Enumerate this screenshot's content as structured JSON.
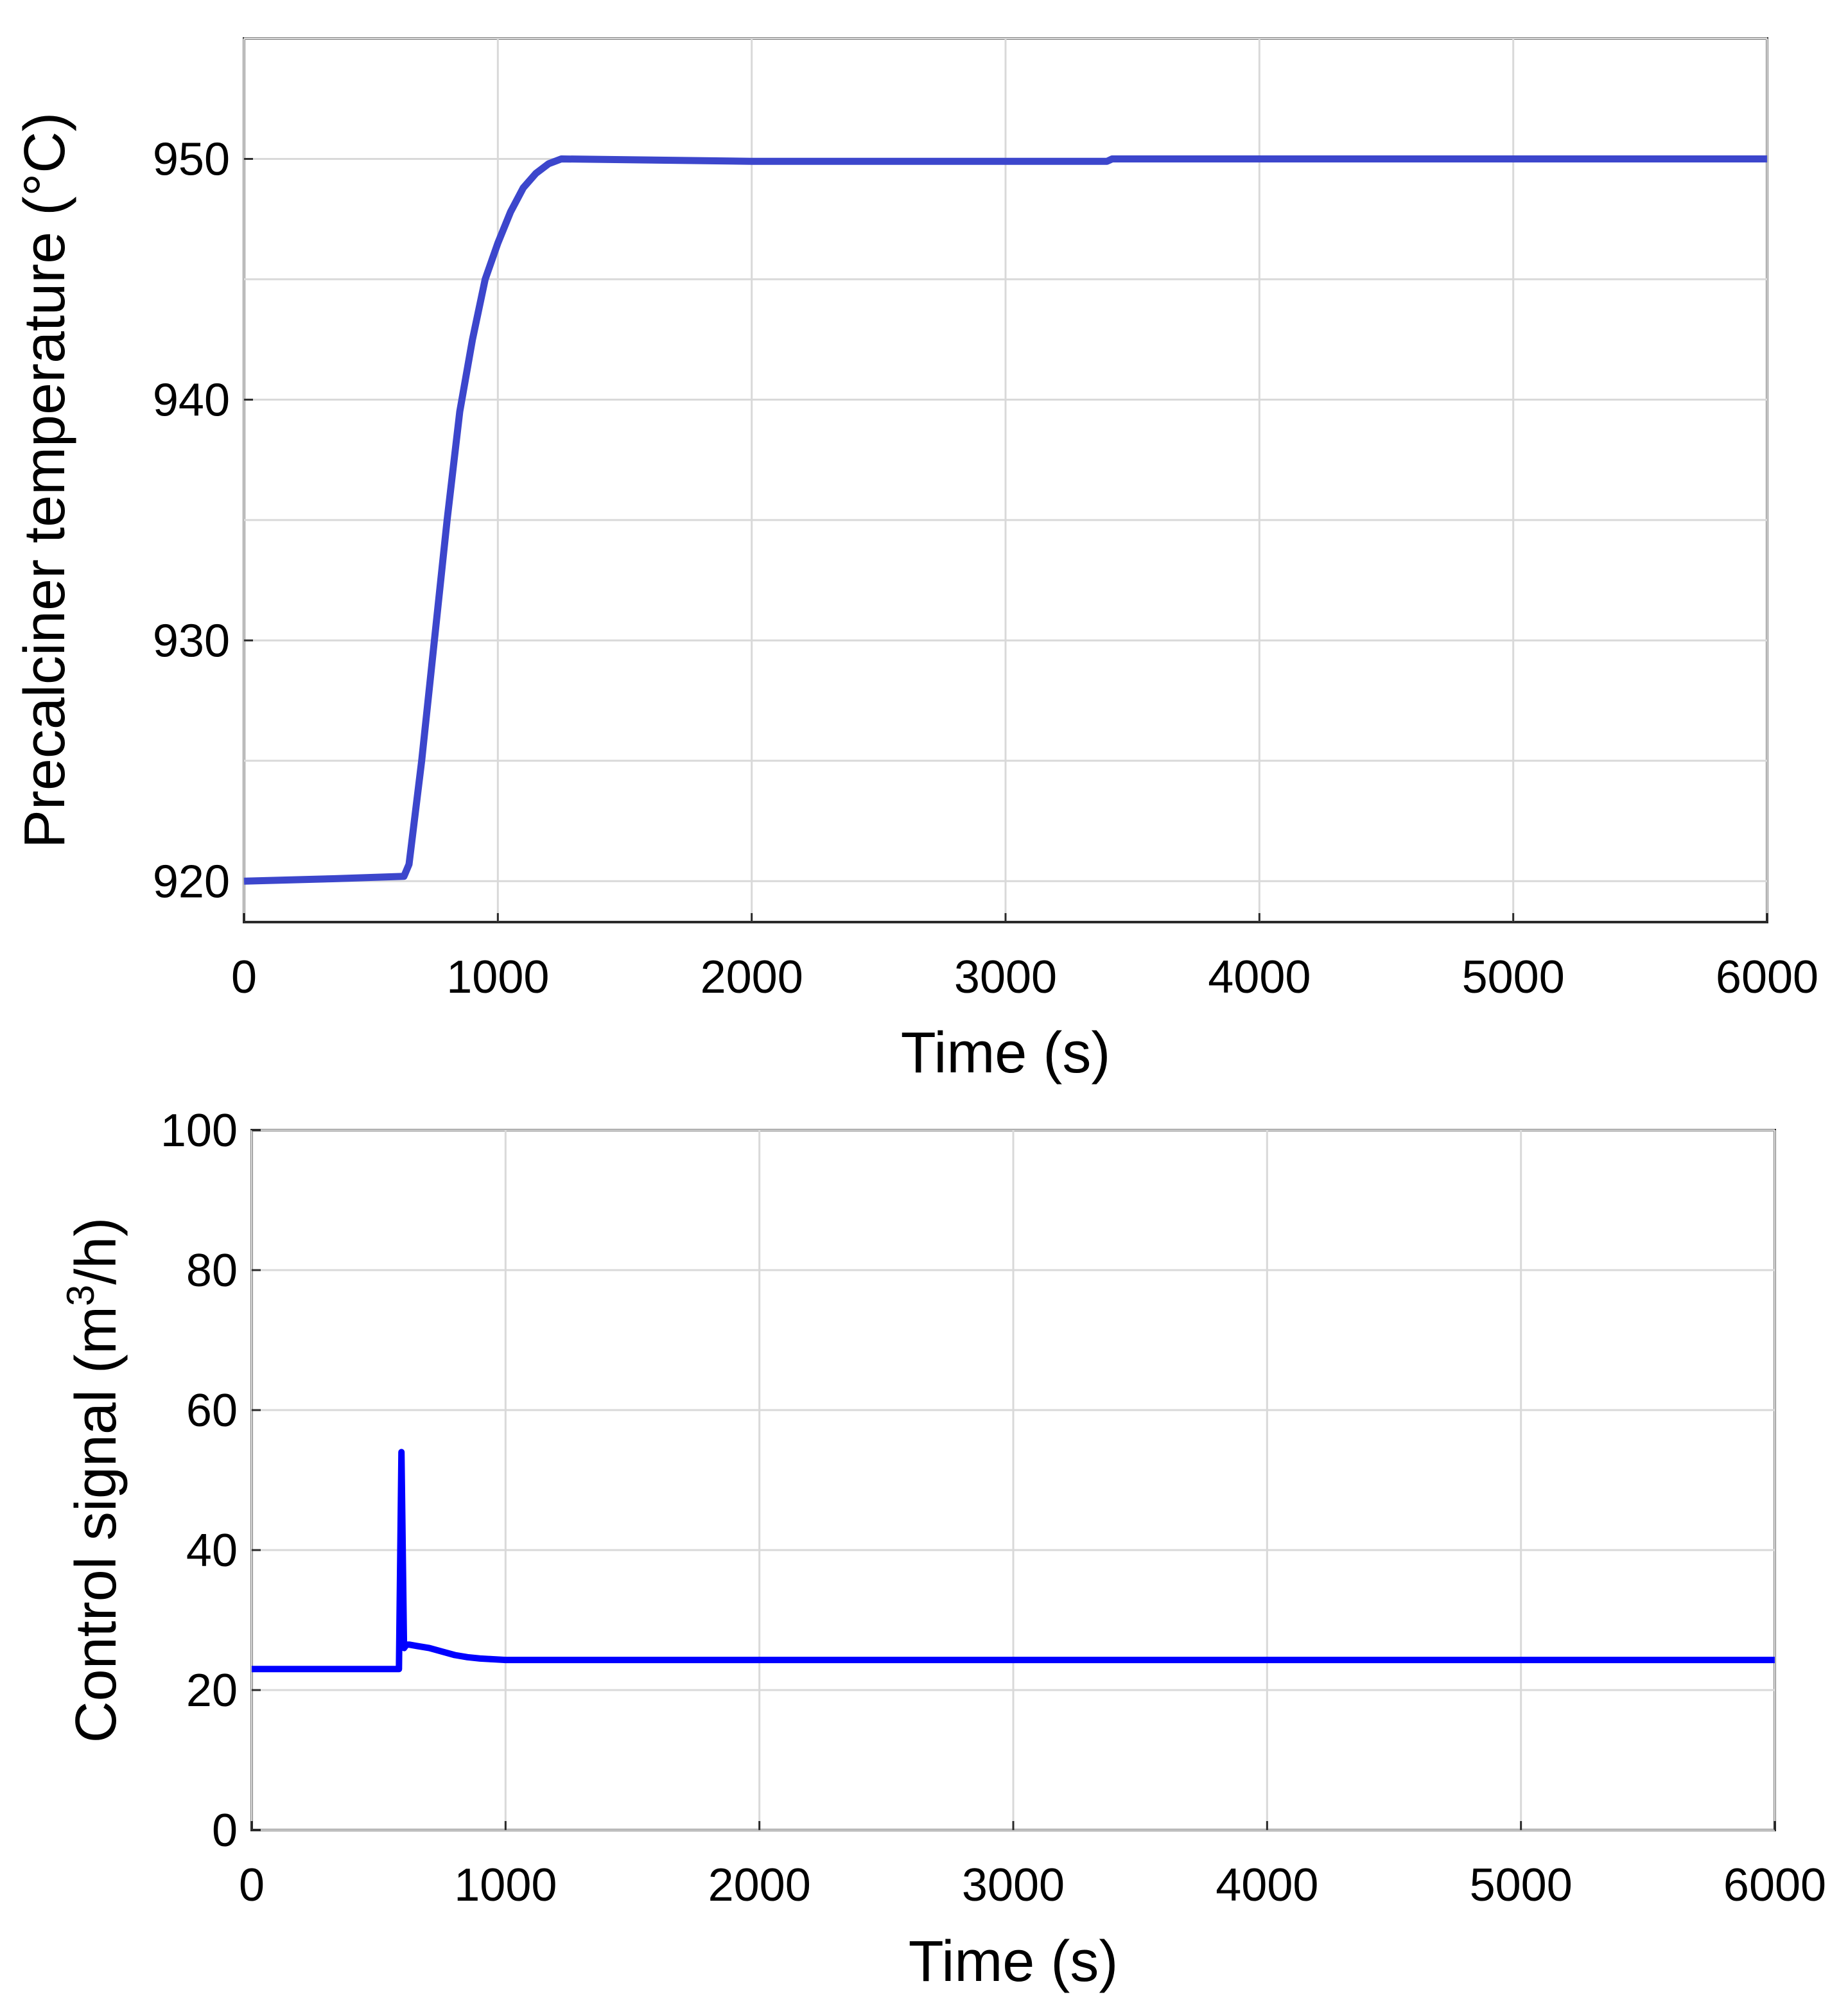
{
  "chart_data": [
    {
      "type": "line",
      "xlabel": "Time (s)",
      "ylabel": "Precalciner temperature (°C)",
      "xlim": [
        0,
        6000
      ],
      "ylim": [
        918.3,
        955
      ],
      "xticks": [
        0,
        1000,
        2000,
        3000,
        4000,
        5000,
        6000
      ],
      "yticks": [
        920,
        930,
        940,
        950
      ],
      "grid": true,
      "series": [
        {
          "color": "#3c46cc",
          "x": [
            0,
            350,
            630,
            650,
            700,
            750,
            800,
            850,
            900,
            950,
            1000,
            1050,
            1100,
            1150,
            1200,
            1250,
            2000,
            3000,
            3400,
            3420,
            4000,
            5000,
            6000
          ],
          "y": [
            920,
            920.1,
            920.2,
            920.7,
            925,
            930,
            935,
            939.5,
            942.5,
            945,
            946.5,
            947.8,
            948.8,
            949.4,
            949.8,
            950,
            949.9,
            949.9,
            949.9,
            950,
            950,
            950,
            950
          ]
        }
      ]
    },
    {
      "type": "line",
      "xlabel": "Time (s)",
      "ylabel": "Control signal (m³/h)",
      "xlim": [
        0,
        6000
      ],
      "ylim": [
        0,
        100
      ],
      "xticks": [
        0,
        1000,
        2000,
        3000,
        4000,
        5000,
        6000
      ],
      "yticks": [
        0,
        20,
        40,
        60,
        80,
        100
      ],
      "grid": true,
      "series": [
        {
          "color": "#0000ff",
          "x": [
            0,
            580,
            590,
            600,
            610,
            620,
            650,
            700,
            750,
            800,
            850,
            900,
            950,
            1000,
            2000,
            3000,
            4000,
            5000,
            6000
          ],
          "y": [
            23,
            23,
            54,
            26,
            26.5,
            26.5,
            26.3,
            26,
            25.5,
            25,
            24.7,
            24.5,
            24.4,
            24.3,
            24.3,
            24.3,
            24.3,
            24.3,
            24.3
          ]
        }
      ]
    }
  ]
}
